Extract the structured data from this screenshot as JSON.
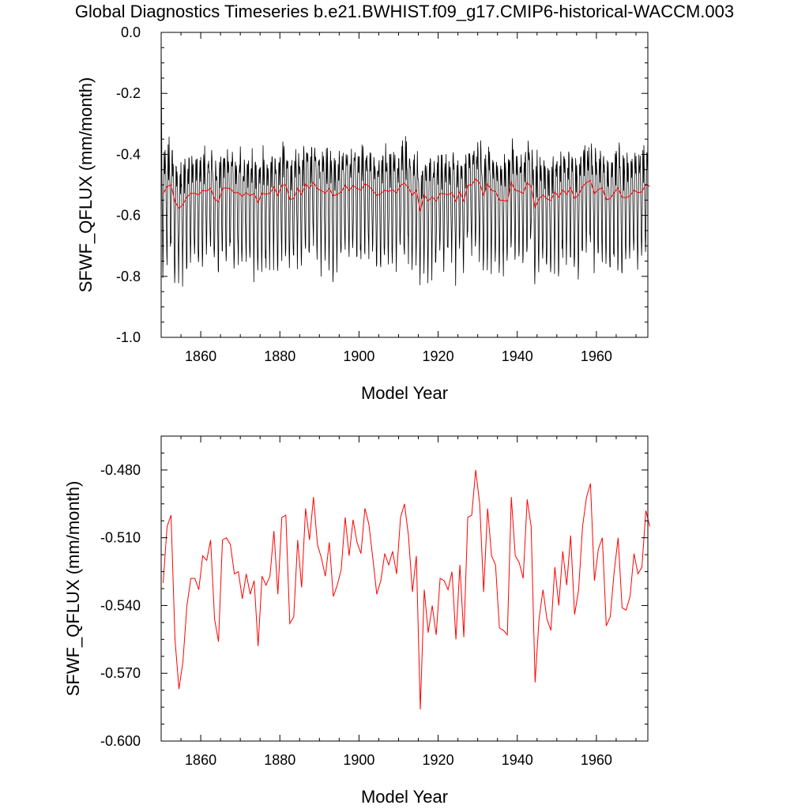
{
  "title": "Global Diagnostics Timeseries b.e21.BWHIST.f09_g17.CMIP6-historical-WACCM.003",
  "colors": {
    "monthly": "#000000",
    "annual": "#ff0000",
    "axes": "#000000",
    "background": "#ffffff"
  },
  "chart_data": [
    {
      "type": "line",
      "xlabel": "Model Year",
      "ylabel": "SFWF_QFLUX (mm/month)",
      "xlim": [
        1850,
        1973
      ],
      "ylim": [
        -1.0,
        0.0
      ],
      "xticks": [
        1860,
        1880,
        1900,
        1920,
        1940,
        1960
      ],
      "xtick_labels": [
        "1860",
        "1880",
        "1900",
        "1920",
        "1940",
        "1960"
      ],
      "yticks": [
        0.0,
        -0.2,
        -0.4,
        -0.6,
        -0.8,
        -1.0
      ],
      "ytick_labels": [
        "0.0",
        "-0.2",
        "-0.4",
        "-0.6",
        "-0.8",
        "-1.0"
      ],
      "grid": false,
      "series": [
        {
          "color": "#000000",
          "sampling": "monthly",
          "x_start": 1850.0,
          "x_step": 0.0833333,
          "note_visible": "dense seasonal cycle oscillating roughly between -0.40 and -0.88, starting near 0.0 in 1850",
          "values": [
            -0.02,
            -0.25,
            -0.43,
            -0.52,
            -0.66,
            -0.74,
            -0.7,
            -0.58,
            -0.47,
            -0.42,
            -0.45,
            -0.5,
            -0.44,
            -0.47,
            -0.55,
            -0.67,
            -0.78,
            -0.74,
            -0.6,
            -0.49,
            -0.43,
            -0.41,
            -0.47,
            -0.53,
            -0.45,
            -0.49,
            -0.56,
            -0.69,
            -0.8,
            -0.76,
            -0.61,
            -0.48,
            -0.42,
            -0.4,
            -0.46,
            -0.52
          ]
        },
        {
          "color": "#ff0000",
          "sampling": "annual",
          "use_annual_from": 1
        }
      ]
    },
    {
      "type": "line",
      "xlabel": "Model Year",
      "ylabel": "SFWF_QFLUX (mm/month)",
      "xlim": [
        1850,
        1973
      ],
      "ylim": [
        -0.6,
        -0.465
      ],
      "xticks": [
        1860,
        1880,
        1900,
        1920,
        1940,
        1960
      ],
      "xtick_labels": [
        "1860",
        "1880",
        "1900",
        "1920",
        "1940",
        "1960"
      ],
      "yticks": [
        -0.48,
        -0.51,
        -0.54,
        -0.57,
        -0.6
      ],
      "ytick_labels": [
        "-0.480",
        "-0.510",
        "-0.540",
        "-0.570",
        "-0.600"
      ],
      "grid": false,
      "series": [
        {
          "color": "#ff0000",
          "sampling": "annual",
          "x": [
            1850,
            1851,
            1852,
            1853,
            1854,
            1855,
            1856,
            1857,
            1858,
            1859,
            1860,
            1861,
            1862,
            1863,
            1864,
            1865,
            1866,
            1867,
            1868,
            1869,
            1870,
            1871,
            1872,
            1873,
            1874,
            1875,
            1876,
            1877,
            1878,
            1879,
            1880,
            1881,
            1882,
            1883,
            1884,
            1885,
            1886,
            1887,
            1888,
            1889,
            1890,
            1891,
            1892,
            1893,
            1894,
            1895,
            1896,
            1897,
            1898,
            1899,
            1900,
            1901,
            1902,
            1903,
            1904,
            1905,
            1906,
            1907,
            1908,
            1909,
            1910,
            1911,
            1912,
            1913,
            1914,
            1915,
            1916,
            1917,
            1918,
            1919,
            1920,
            1921,
            1922,
            1923,
            1924,
            1925,
            1926,
            1927,
            1928,
            1929,
            1930,
            1931,
            1932,
            1933,
            1934,
            1935,
            1936,
            1937,
            1938,
            1939,
            1940,
            1941,
            1942,
            1943,
            1944,
            1945,
            1946,
            1947,
            1948,
            1949,
            1950,
            1951,
            1952,
            1953,
            1954,
            1955,
            1956,
            1957,
            1958,
            1959,
            1960,
            1961,
            1962,
            1963,
            1964,
            1965,
            1966,
            1967,
            1968,
            1969,
            1970,
            1971,
            1972,
            1973
          ],
          "values": [
            -0.53,
            -0.505,
            -0.5,
            -0.555,
            -0.577,
            -0.565,
            -0.54,
            -0.528,
            -0.528,
            -0.533,
            -0.518,
            -0.52,
            -0.511,
            -0.546,
            -0.556,
            -0.511,
            -0.51,
            -0.513,
            -0.526,
            -0.525,
            -0.537,
            -0.526,
            -0.535,
            -0.529,
            -0.558,
            -0.527,
            -0.531,
            -0.527,
            -0.507,
            -0.535,
            -0.501,
            -0.5,
            -0.548,
            -0.545,
            -0.511,
            -0.532,
            -0.497,
            -0.511,
            -0.492,
            -0.513,
            -0.519,
            -0.527,
            -0.512,
            -0.536,
            -0.531,
            -0.524,
            -0.501,
            -0.518,
            -0.502,
            -0.512,
            -0.517,
            -0.497,
            -0.504,
            -0.519,
            -0.535,
            -0.529,
            -0.517,
            -0.522,
            -0.516,
            -0.526,
            -0.501,
            -0.495,
            -0.509,
            -0.534,
            -0.518,
            -0.586,
            -0.533,
            -0.552,
            -0.54,
            -0.553,
            -0.528,
            -0.529,
            -0.533,
            -0.525,
            -0.555,
            -0.522,
            -0.554,
            -0.501,
            -0.5,
            -0.48,
            -0.495,
            -0.534,
            -0.497,
            -0.518,
            -0.522,
            -0.55,
            -0.551,
            -0.553,
            -0.492,
            -0.518,
            -0.521,
            -0.528,
            -0.493,
            -0.505,
            -0.574,
            -0.546,
            -0.533,
            -0.546,
            -0.551,
            -0.523,
            -0.54,
            -0.516,
            -0.531,
            -0.509,
            -0.544,
            -0.533,
            -0.505,
            -0.492,
            -0.486,
            -0.529,
            -0.515,
            -0.51,
            -0.549,
            -0.545,
            -0.525,
            -0.51,
            -0.541,
            -0.542,
            -0.536,
            -0.517,
            -0.526,
            -0.523,
            -0.498,
            -0.505
          ]
        }
      ]
    }
  ]
}
